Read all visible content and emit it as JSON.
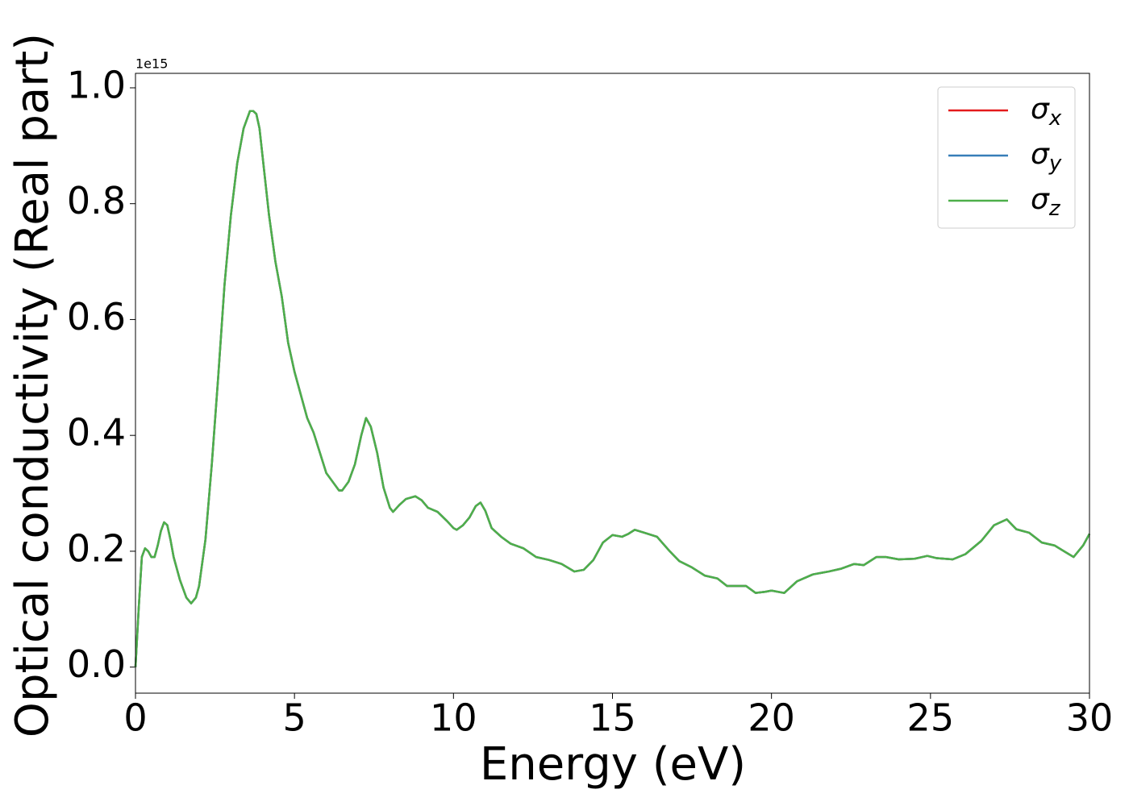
{
  "chart_data": {
    "type": "line",
    "xlabel": "Energy (eV)",
    "ylabel": "Optical conductivity (Real part)",
    "y_offset_label": "1e15",
    "xlim": [
      0,
      30
    ],
    "ylim": [
      -0.045,
      1.025
    ],
    "xticks": [
      0,
      5,
      10,
      15,
      20,
      25,
      30
    ],
    "yticks": [
      {
        "value": 0,
        "label": "0.0"
      },
      {
        "value": 0.2,
        "label": "0.2"
      },
      {
        "value": 0.4,
        "label": "0.4"
      },
      {
        "value": 0.6,
        "label": "0.6"
      },
      {
        "value": 0.8,
        "label": "0.8"
      },
      {
        "value": 1.0,
        "label": "1.0"
      }
    ],
    "legend": "upper right",
    "x": [
      0,
      0.1,
      0.2,
      0.3,
      0.4,
      0.5,
      0.6,
      0.7,
      0.8,
      0.9,
      1.0,
      1.1,
      1.2,
      1.4,
      1.6,
      1.75,
      1.9,
      2.0,
      2.2,
      2.4,
      2.6,
      2.8,
      3.0,
      3.2,
      3.4,
      3.6,
      3.7,
      3.8,
      3.9,
      4.0,
      4.2,
      4.4,
      4.6,
      4.8,
      5.0,
      5.2,
      5.4,
      5.6,
      5.8,
      6.0,
      6.2,
      6.4,
      6.5,
      6.7,
      6.9,
      7.1,
      7.25,
      7.4,
      7.6,
      7.8,
      8.0,
      8.1,
      8.3,
      8.5,
      8.8,
      9.0,
      9.2,
      9.5,
      9.8,
      10.0,
      10.1,
      10.3,
      10.5,
      10.7,
      10.85,
      11.0,
      11.2,
      11.5,
      11.8,
      12.2,
      12.6,
      13.0,
      13.4,
      13.8,
      14.1,
      14.4,
      14.7,
      15.0,
      15.3,
      15.5,
      15.7,
      16.0,
      16.4,
      16.8,
      17.1,
      17.5,
      17.9,
      18.3,
      18.6,
      18.9,
      19.2,
      19.5,
      19.8,
      20.0,
      20.4,
      20.8,
      21.3,
      21.8,
      22.2,
      22.6,
      22.9,
      23.3,
      23.6,
      24.0,
      24.5,
      24.9,
      25.2,
      25.7,
      26.1,
      26.6,
      27.0,
      27.4,
      27.7,
      28.1,
      28.5,
      28.9,
      29.2,
      29.5,
      29.8,
      30.0
    ],
    "series": [
      {
        "name": "σx",
        "color": "#e41a1c",
        "values": [
          0,
          0.1,
          0.19,
          0.205,
          0.2,
          0.19,
          0.19,
          0.21,
          0.235,
          0.25,
          0.245,
          0.22,
          0.19,
          0.15,
          0.12,
          0.11,
          0.12,
          0.14,
          0.22,
          0.35,
          0.5,
          0.66,
          0.78,
          0.87,
          0.93,
          0.96,
          0.96,
          0.955,
          0.93,
          0.88,
          0.78,
          0.7,
          0.64,
          0.56,
          0.51,
          0.47,
          0.43,
          0.405,
          0.37,
          0.335,
          0.32,
          0.305,
          0.305,
          0.32,
          0.35,
          0.4,
          0.43,
          0.415,
          0.37,
          0.31,
          0.275,
          0.268,
          0.28,
          0.29,
          0.295,
          0.288,
          0.275,
          0.268,
          0.252,
          0.24,
          0.237,
          0.245,
          0.258,
          0.278,
          0.284,
          0.27,
          0.24,
          0.225,
          0.213,
          0.205,
          0.19,
          0.185,
          0.178,
          0.165,
          0.168,
          0.185,
          0.215,
          0.228,
          0.225,
          0.23,
          0.237,
          0.232,
          0.225,
          0.2,
          0.183,
          0.172,
          0.158,
          0.153,
          0.14,
          0.14,
          0.14,
          0.128,
          0.13,
          0.132,
          0.128,
          0.148,
          0.16,
          0.165,
          0.17,
          0.178,
          0.176,
          0.19,
          0.19,
          0.186,
          0.187,
          0.192,
          0.188,
          0.186,
          0.195,
          0.218,
          0.245,
          0.255,
          0.238,
          0.232,
          0.215,
          0.21,
          0.2,
          0.19,
          0.21,
          0.23
        ]
      },
      {
        "name": "σy",
        "color": "#377eb8",
        "values": [
          0,
          0.1,
          0.19,
          0.205,
          0.2,
          0.19,
          0.19,
          0.21,
          0.235,
          0.25,
          0.245,
          0.22,
          0.19,
          0.15,
          0.12,
          0.11,
          0.12,
          0.14,
          0.22,
          0.35,
          0.5,
          0.66,
          0.78,
          0.87,
          0.93,
          0.96,
          0.96,
          0.955,
          0.93,
          0.88,
          0.78,
          0.7,
          0.64,
          0.56,
          0.51,
          0.47,
          0.43,
          0.405,
          0.37,
          0.335,
          0.32,
          0.305,
          0.305,
          0.32,
          0.35,
          0.4,
          0.43,
          0.415,
          0.37,
          0.31,
          0.275,
          0.268,
          0.28,
          0.29,
          0.295,
          0.288,
          0.275,
          0.268,
          0.252,
          0.24,
          0.237,
          0.245,
          0.258,
          0.278,
          0.284,
          0.27,
          0.24,
          0.225,
          0.213,
          0.205,
          0.19,
          0.185,
          0.178,
          0.165,
          0.168,
          0.185,
          0.215,
          0.228,
          0.225,
          0.23,
          0.237,
          0.232,
          0.225,
          0.2,
          0.183,
          0.172,
          0.158,
          0.153,
          0.14,
          0.14,
          0.14,
          0.128,
          0.13,
          0.132,
          0.128,
          0.148,
          0.16,
          0.165,
          0.17,
          0.178,
          0.176,
          0.19,
          0.19,
          0.186,
          0.187,
          0.192,
          0.188,
          0.186,
          0.195,
          0.218,
          0.245,
          0.255,
          0.238,
          0.232,
          0.215,
          0.21,
          0.2,
          0.19,
          0.21,
          0.23
        ]
      },
      {
        "name": "σz",
        "color": "#4daf4a",
        "values": [
          0,
          0.1,
          0.19,
          0.205,
          0.2,
          0.19,
          0.19,
          0.21,
          0.235,
          0.25,
          0.245,
          0.22,
          0.19,
          0.15,
          0.12,
          0.11,
          0.12,
          0.14,
          0.22,
          0.35,
          0.5,
          0.66,
          0.78,
          0.87,
          0.93,
          0.96,
          0.96,
          0.955,
          0.93,
          0.88,
          0.78,
          0.7,
          0.64,
          0.56,
          0.51,
          0.47,
          0.43,
          0.405,
          0.37,
          0.335,
          0.32,
          0.305,
          0.305,
          0.32,
          0.35,
          0.4,
          0.43,
          0.415,
          0.37,
          0.31,
          0.275,
          0.268,
          0.28,
          0.29,
          0.295,
          0.288,
          0.275,
          0.268,
          0.252,
          0.24,
          0.237,
          0.245,
          0.258,
          0.278,
          0.284,
          0.27,
          0.24,
          0.225,
          0.213,
          0.205,
          0.19,
          0.185,
          0.178,
          0.165,
          0.168,
          0.185,
          0.215,
          0.228,
          0.225,
          0.23,
          0.237,
          0.232,
          0.225,
          0.2,
          0.183,
          0.172,
          0.158,
          0.153,
          0.14,
          0.14,
          0.14,
          0.128,
          0.13,
          0.132,
          0.128,
          0.148,
          0.16,
          0.165,
          0.17,
          0.178,
          0.176,
          0.19,
          0.19,
          0.186,
          0.187,
          0.192,
          0.188,
          0.186,
          0.195,
          0.218,
          0.245,
          0.255,
          0.238,
          0.232,
          0.215,
          0.21,
          0.2,
          0.19,
          0.21,
          0.23
        ]
      }
    ]
  }
}
